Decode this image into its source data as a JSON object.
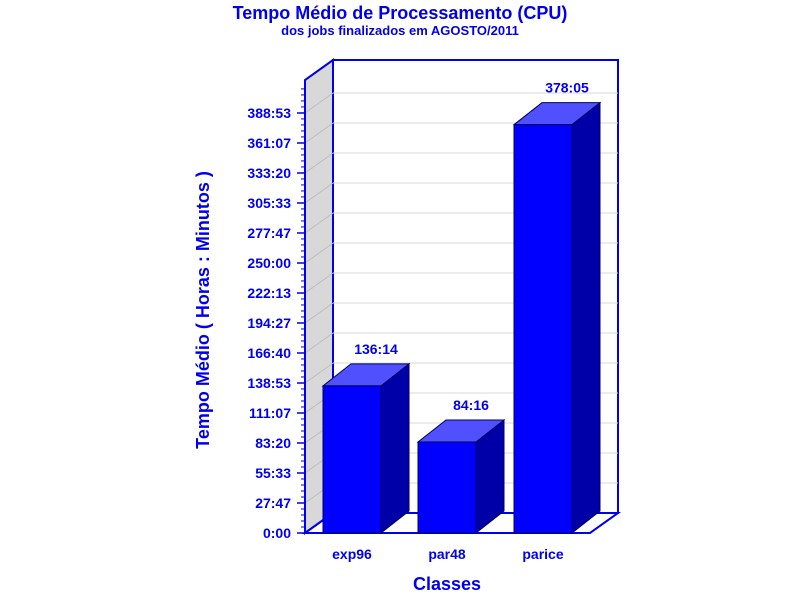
{
  "chart_data": {
    "type": "bar",
    "title": "Tempo Médio de Processamento (CPU)",
    "subtitle": "dos jobs finalizados em AGOSTO/2011",
    "xlabel": "Classes",
    "ylabel": "Tempo Médio ( Horas : Minutos )",
    "categories": [
      "exp96",
      "par48",
      "parice"
    ],
    "values": [
      136.233,
      84.267,
      378.083
    ],
    "value_labels": [
      "136:14",
      "84:16",
      "378:05"
    ],
    "y_ticks": [
      0,
      27.783,
      55.55,
      83.333,
      111.117,
      138.883,
      166.667,
      194.45,
      222.217,
      250,
      277.783,
      305.55,
      333.333,
      361.117,
      388.883
    ],
    "y_tick_labels": [
      "0:00",
      "27:47",
      "55:33",
      "83:20",
      "111:07",
      "138:53",
      "166:40",
      "194:27",
      "222:13",
      "250:00",
      "277:47",
      "305:33",
      "333:20",
      "361:07",
      "388:53"
    ],
    "ylim": [
      0,
      416.667
    ],
    "grid": true,
    "legend": "none",
    "colors": {
      "bar_front": "#0000ff",
      "bar_top": "#5050ff",
      "bar_side": "#0000a8",
      "axis": "#0000ee",
      "text": "#0000ee",
      "wall": "#d8d8d8",
      "grid": "#d8d8d8"
    }
  }
}
